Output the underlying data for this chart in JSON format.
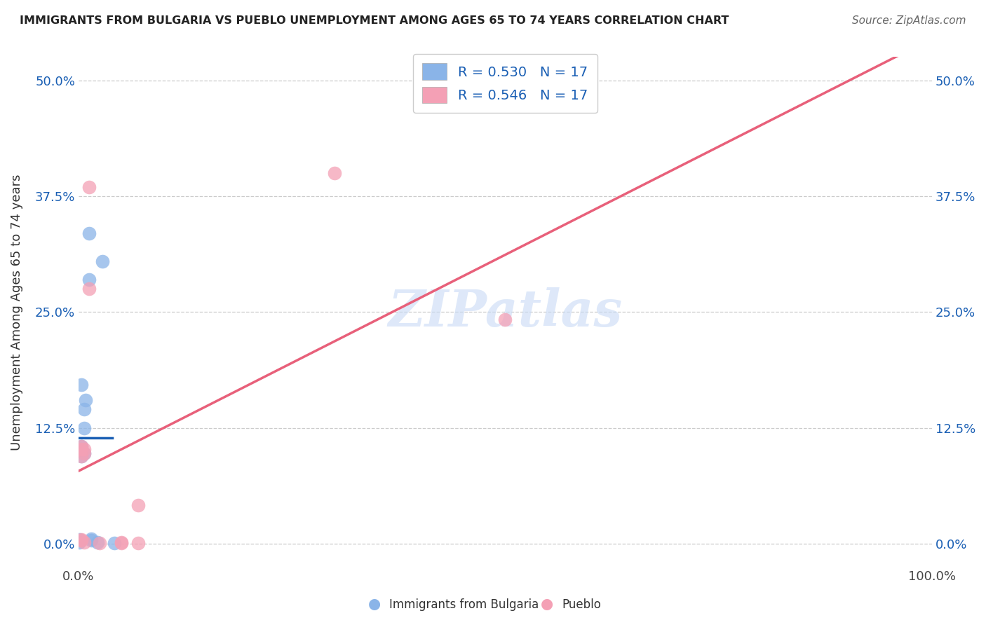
{
  "title": "IMMIGRANTS FROM BULGARIA VS PUEBLO UNEMPLOYMENT AMONG AGES 65 TO 74 YEARS CORRELATION CHART",
  "source": "Source: ZipAtlas.com",
  "ylabel_label": "Unemployment Among Ages 65 to 74 years",
  "xlabel_bottom_blue": "Immigrants from Bulgaria",
  "xlabel_bottom_pink": "Pueblo",
  "legend_blue_R": "R = 0.530",
  "legend_blue_N": "N = 17",
  "legend_pink_R": "R = 0.546",
  "legend_pink_N": "N = 17",
  "blue_scatter_color": "#8ab4e8",
  "pink_scatter_color": "#f4a0b5",
  "trendline_blue_solid_color": "#1a5fb4",
  "trendline_blue_dashed_color": "#7eb3e8",
  "trendline_pink_color": "#e8607a",
  "watermark_color": "#c8daf5",
  "blue_scatter_x": [
    0.0012,
    0.0012,
    0.0028,
    0.0003,
    0.0003,
    0.0003,
    0.0007,
    0.0007,
    0.0007,
    5e-05,
    5e-05,
    0.0015,
    0.0015,
    0.0022,
    0.0042,
    0.0003,
    0.0008
  ],
  "blue_scatter_y": [
    0.335,
    0.285,
    0.305,
    0.105,
    0.095,
    0.1,
    0.125,
    0.145,
    0.098,
    0.005,
    0.002,
    0.006,
    0.004,
    0.002,
    0.001,
    0.172,
    0.155
  ],
  "pink_scatter_x": [
    0.0012,
    0.0012,
    0.0003,
    0.0003,
    0.0007,
    0.0007,
    0.0025,
    0.005,
    0.005,
    0.05,
    0.03,
    0.0003,
    0.0003,
    0.007,
    0.007,
    0.0003,
    0.0007
  ],
  "pink_scatter_y": [
    0.385,
    0.275,
    0.105,
    0.095,
    0.102,
    0.098,
    0.001,
    0.002,
    0.001,
    0.242,
    0.4,
    0.005,
    0.004,
    0.001,
    0.042,
    0.102,
    0.002
  ],
  "xlim": [
    0.0,
    0.1
  ],
  "ylim": [
    -0.025,
    0.525
  ],
  "yticks": [
    0.0,
    0.125,
    0.25,
    0.375,
    0.5
  ],
  "ytick_labels": [
    "0.0%",
    "12.5%",
    "25.0%",
    "37.5%",
    "50.0%"
  ],
  "figsize": [
    14.06,
    8.92
  ],
  "dpi": 100
}
